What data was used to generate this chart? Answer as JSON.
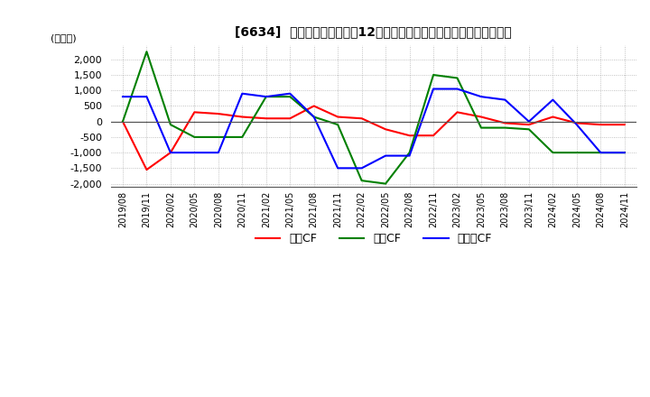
{
  "title": "[6634]  キャッシュフローの12か月移動合計の対前年同期増減額の推移",
  "ylabel": "(百万円)",
  "ylim": [
    -2100,
    2450
  ],
  "yticks": [
    -2000,
    -1500,
    -1000,
    -500,
    0,
    500,
    1000,
    1500,
    2000
  ],
  "legend_labels": [
    "営業CF",
    "投資CF",
    "フリーCF"
  ],
  "legend_colors": [
    "#ff0000",
    "#008000",
    "#0000ff"
  ],
  "x_labels": [
    "2019/08",
    "2019/11",
    "2020/02",
    "2020/05",
    "2020/08",
    "2020/11",
    "2021/02",
    "2021/05",
    "2021/08",
    "2021/11",
    "2022/02",
    "2022/05",
    "2022/08",
    "2022/11",
    "2023/02",
    "2023/05",
    "2023/08",
    "2023/11",
    "2024/02",
    "2024/05",
    "2024/08",
    "2024/11"
  ],
  "営業CF": [
    0,
    -1550,
    -1000,
    300,
    250,
    150,
    100,
    100,
    500,
    150,
    100,
    -250,
    -450,
    -450,
    300,
    150,
    -50,
    -100,
    150,
    -50,
    -100,
    -100
  ],
  "投資CF": [
    0,
    2250,
    -100,
    -500,
    -500,
    -500,
    800,
    800,
    150,
    -100,
    -1900,
    -2000,
    -1000,
    1500,
    1400,
    -200,
    -200,
    -250,
    -1000,
    -1000,
    -1000,
    -1000
  ],
  "フリーCF": [
    800,
    800,
    -1000,
    -1000,
    -1000,
    900,
    800,
    900,
    150,
    -1500,
    -1500,
    -1100,
    -1100,
    1050,
    1050,
    800,
    700,
    0,
    700,
    -100,
    -1000,
    -1000
  ],
  "background_color": "#ffffff",
  "grid_color": "#b0b0b0",
  "dotted_grid": true
}
